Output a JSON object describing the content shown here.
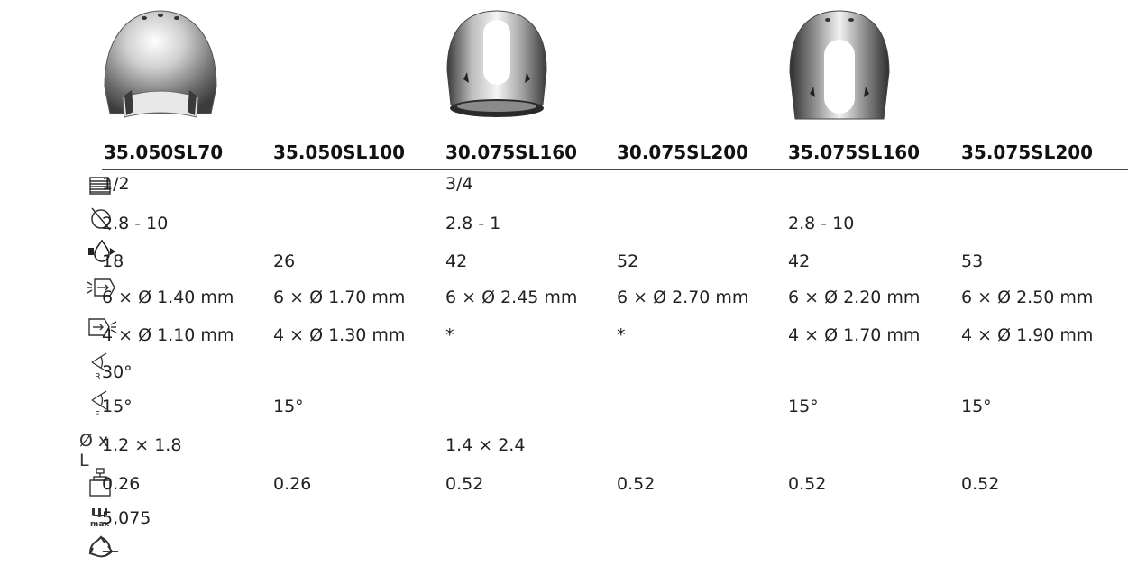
{
  "columns": [
    "35.050SL70",
    "35.050SL100",
    "30.075SL160",
    "30.075SL200",
    "35.075SL160",
    "35.075SL200"
  ],
  "rows": [
    {
      "icon": "thread-icon",
      "values": [
        "1/2",
        "",
        "3/4",
        "",
        "",
        ""
      ]
    },
    {
      "icon": "pipe-diameter-icon",
      "values": [
        "2.8 - 10",
        "",
        "2.8 - 1",
        "",
        "2.8 - 10",
        ""
      ]
    },
    {
      "icon": "flow-rate-icon",
      "values": [
        "18",
        "26",
        "42",
        "52",
        "42",
        "53"
      ]
    },
    {
      "icon": "rear-jets-icon",
      "values": [
        "6 × Ø 1.40 mm",
        "6 × Ø 1.70 mm",
        "6 × Ø 2.45 mm",
        "6 × Ø 2.70 mm",
        "6 × Ø 2.20 mm",
        "6 × Ø 2.50 mm"
      ]
    },
    {
      "icon": "front-jets-icon",
      "values": [
        "4 × Ø 1.10 mm",
        "4 × Ø 1.30 mm",
        "*",
        "*",
        "4 × Ø 1.70 mm",
        "4 × Ø 1.90 mm"
      ]
    },
    {
      "icon": "rear-angle-icon",
      "values": [
        "30°",
        "",
        "",
        "",
        "",
        ""
      ]
    },
    {
      "icon": "front-angle-icon",
      "values": [
        "15°",
        "15°",
        "",
        "",
        "15°",
        "15°"
      ]
    },
    {
      "icon": "diameter-length-icon",
      "values": [
        "1.2 × 1.8",
        "",
        "1.4 × 2.4",
        "",
        "",
        ""
      ]
    },
    {
      "icon": "weight-icon",
      "values": [
        "0.26",
        "0.26",
        "0.52",
        "0.52",
        "0.52",
        "0.52"
      ]
    },
    {
      "icon": "max-pressure-icon",
      "values": [
        "5,075",
        "",
        "",
        "",
        "",
        ""
      ]
    },
    {
      "icon": "recycle-icon",
      "values": [
        "—",
        "",
        "",
        "",
        "",
        ""
      ]
    }
  ],
  "icon_labels": {
    "diameter_length": "Ø x L",
    "rear_angle_letter": "R",
    "front_angle_letter": "F",
    "max_label": "max"
  },
  "images": [
    "nozzle-35-050",
    "nozzle-30-075",
    "nozzle-35-075"
  ]
}
